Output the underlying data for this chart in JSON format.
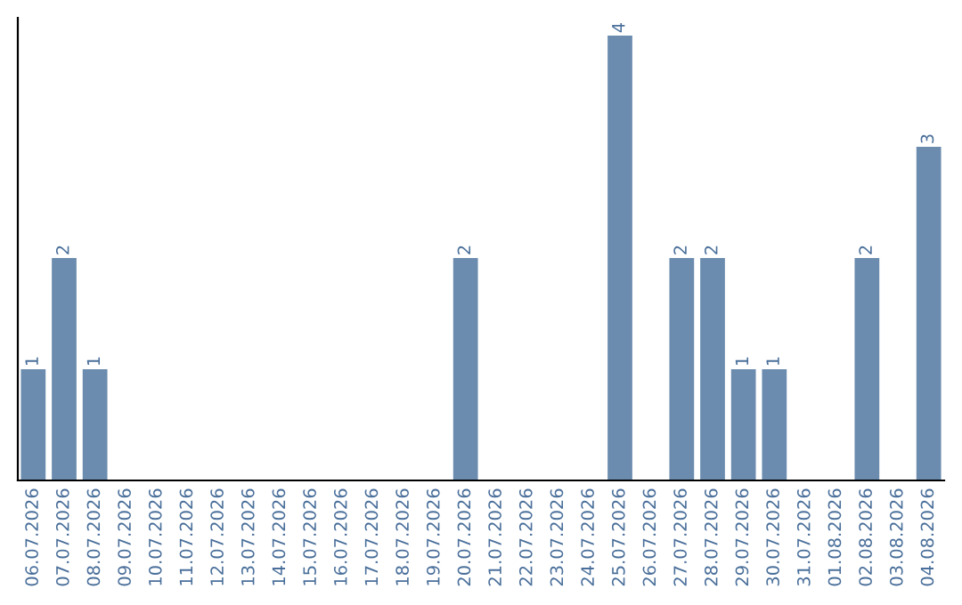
{
  "chart_data": {
    "type": "bar",
    "categories": [
      "06.07.2026",
      "07.07.2026",
      "08.07.2026",
      "09.07.2026",
      "10.07.2026",
      "11.07.2026",
      "12.07.2026",
      "13.07.2026",
      "14.07.2026",
      "15.07.2026",
      "16.07.2026",
      "17.07.2026",
      "18.07.2026",
      "19.07.2026",
      "20.07.2026",
      "21.07.2026",
      "22.07.2026",
      "23.07.2026",
      "24.07.2026",
      "25.07.2026",
      "26.07.2026",
      "27.07.2026",
      "28.07.2026",
      "29.07.2026",
      "30.07.2026",
      "31.07.2026",
      "01.08.2026",
      "02.08.2026",
      "03.08.2026",
      "04.08.2026"
    ],
    "values": [
      1,
      2,
      1,
      0,
      0,
      0,
      0,
      0,
      0,
      0,
      0,
      0,
      0,
      0,
      2,
      0,
      0,
      0,
      0,
      4,
      0,
      2,
      2,
      1,
      1,
      0,
      0,
      2,
      0,
      3
    ],
    "value_labels": [
      "1",
      "2",
      "1",
      null,
      null,
      null,
      null,
      null,
      null,
      null,
      null,
      null,
      null,
      null,
      "2",
      null,
      null,
      null,
      null,
      "4",
      null,
      "2",
      "2",
      "1",
      "1",
      null,
      null,
      "2",
      null,
      "3"
    ],
    "color": "#6b8cae",
    "ylim": [
      0,
      4.16
    ],
    "tick_labels": "x",
    "grid": false,
    "legend": false
  }
}
